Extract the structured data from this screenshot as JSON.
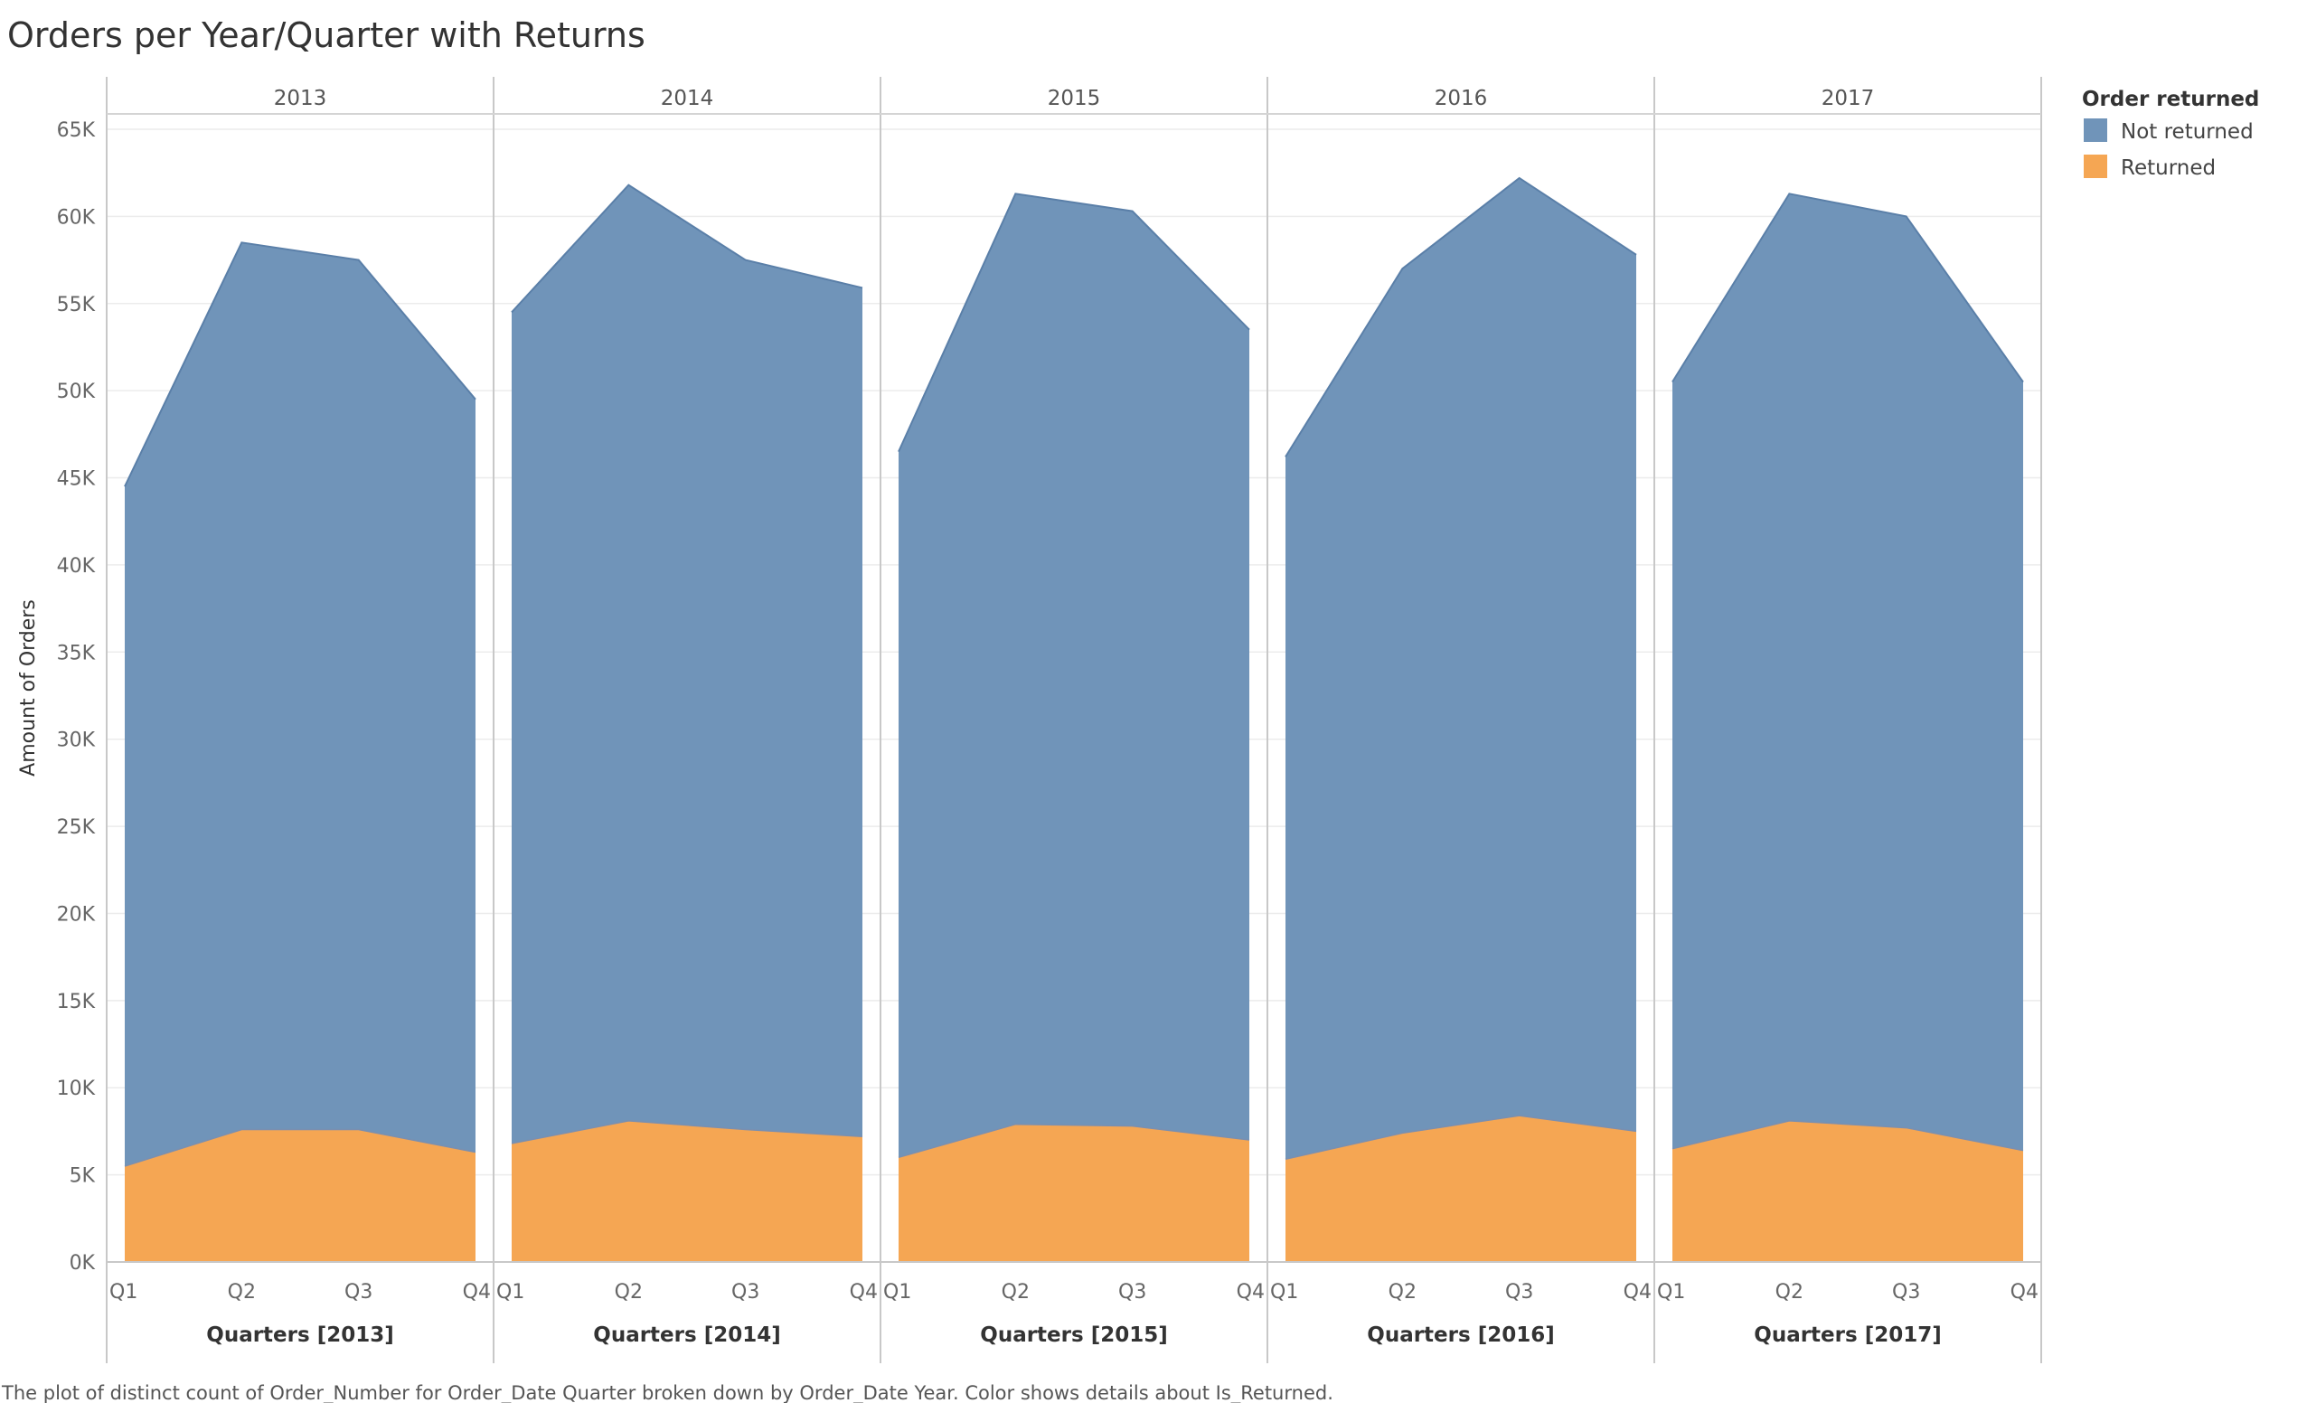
{
  "chart_data": {
    "type": "area",
    "stacked": true,
    "title": "Orders per Year/Quarter with Returns",
    "ylabel": "Amount of Orders",
    "ylim": [
      0,
      65000
    ],
    "y_ticks": [
      0,
      5000,
      10000,
      15000,
      20000,
      25000,
      30000,
      35000,
      40000,
      45000,
      50000,
      55000,
      60000,
      65000
    ],
    "y_tick_labels": [
      "0K",
      "5K",
      "10K",
      "15K",
      "20K",
      "25K",
      "30K",
      "35K",
      "40K",
      "45K",
      "50K",
      "55K",
      "60K",
      "65K"
    ],
    "quarters": [
      "Q1",
      "Q2",
      "Q3",
      "Q4"
    ],
    "grid": "horizontal",
    "legend": {
      "title": "Order returned",
      "position": "top-right",
      "items": [
        {
          "label": "Not returned",
          "color": "#7094b9"
        },
        {
          "label": "Returned",
          "color": "#f5a653"
        }
      ]
    },
    "panels": [
      {
        "year": "2013",
        "xlabel": "Quarters [2013]",
        "returned": [
          5500,
          7600,
          7600,
          6300
        ],
        "total": [
          44500,
          58500,
          57500,
          49500
        ]
      },
      {
        "year": "2014",
        "xlabel": "Quarters [2014]",
        "returned": [
          6800,
          8100,
          7600,
          7200
        ],
        "total": [
          54500,
          61800,
          57500,
          55900
        ]
      },
      {
        "year": "2015",
        "xlabel": "Quarters [2015]",
        "returned": [
          6000,
          7900,
          7800,
          7000
        ],
        "total": [
          46500,
          61300,
          60300,
          53500
        ]
      },
      {
        "year": "2016",
        "xlabel": "Quarters [2016]",
        "returned": [
          5900,
          7400,
          8400,
          7500
        ],
        "total": [
          46200,
          57000,
          62200,
          57800
        ]
      },
      {
        "year": "2017",
        "xlabel": "Quarters [2017]",
        "returned": [
          6500,
          8100,
          7700,
          6400
        ],
        "total": [
          50500,
          61300,
          60000,
          50500
        ]
      }
    ],
    "colors": {
      "not_returned": "#7094b9",
      "returned": "#f5a653",
      "not_returned_line": "#5a7fa8",
      "returned_line": "#7a8fb0"
    }
  },
  "caption": "The plot of distinct count of Order_Number for Order_Date Quarter broken down by Order_Date Year.  Color shows details about Is_Returned."
}
